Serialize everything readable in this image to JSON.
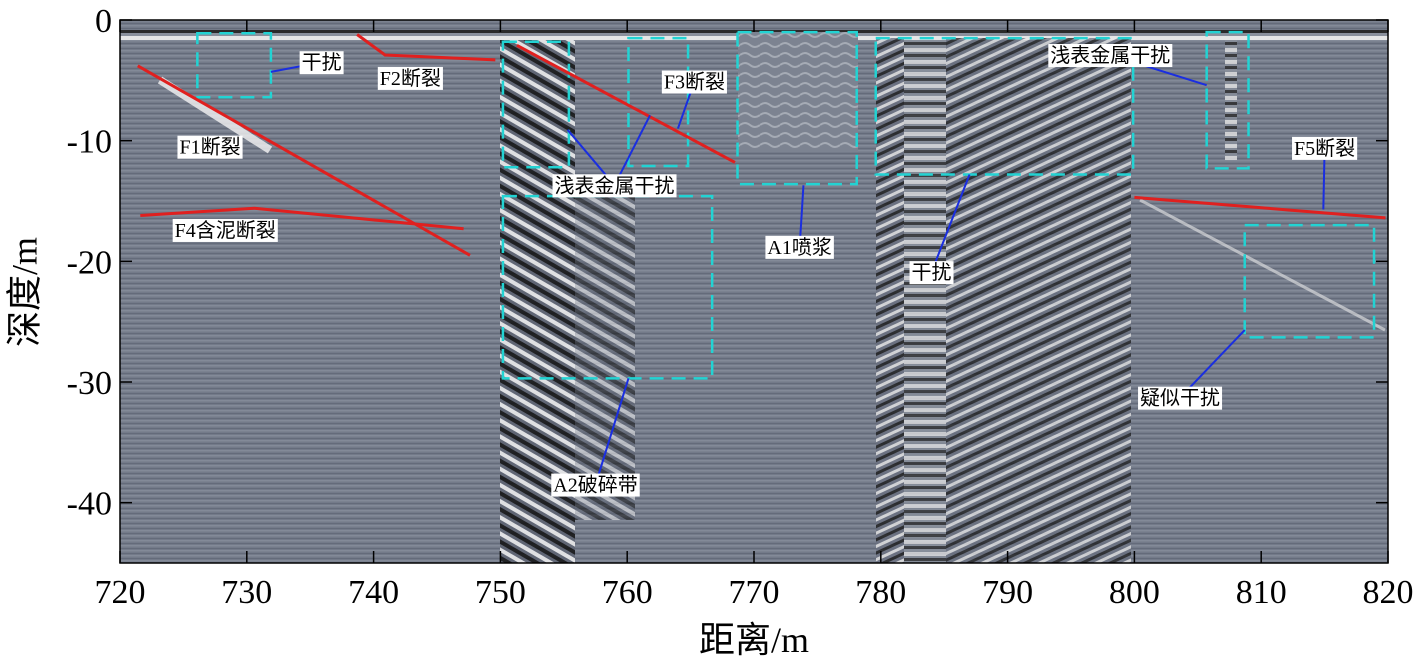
{
  "chart_data": {
    "type": "radargram",
    "xlabel": "距离/m",
    "ylabel": "深度/m",
    "xlim": [
      720,
      820
    ],
    "ylim": [
      -45,
      0
    ],
    "xticks": [
      720,
      730,
      740,
      750,
      760,
      770,
      780,
      790,
      800,
      810,
      820
    ],
    "yticks": [
      0,
      -10,
      -20,
      -30,
      -40
    ],
    "fault_color": "#e0201f",
    "box_color": "#22d3d3",
    "leader_color": "#1a2ee0",
    "faults": [
      {
        "x": [
          721.4,
          747.6
        ],
        "y": [
          -3.8,
          -19.5
        ]
      },
      {
        "x": [
          721.6,
          730.6,
          747.1
        ],
        "y": [
          -16.2,
          -15.6,
          -17.3
        ]
      },
      {
        "x": [
          738.7,
          740.9,
          749.6
        ],
        "y": [
          -1.2,
          -2.9,
          -3.3
        ]
      },
      {
        "x": [
          751.3,
          768.5
        ],
        "y": [
          -2.1,
          -11.8
        ]
      },
      {
        "x": [
          800.0,
          819.8
        ],
        "y": [
          -14.7,
          -16.4
        ]
      }
    ],
    "boxes": [
      {
        "x": [
          726.1,
          731.9
        ],
        "y": [
          -1.1,
          -6.4
        ]
      },
      {
        "x": [
          750.2,
          755.4
        ],
        "y": [
          -1.8,
          -12.2
        ]
      },
      {
        "x": [
          760.1,
          764.8
        ],
        "y": [
          -1.5,
          -12.1
        ]
      },
      {
        "x": [
          750.2,
          766.7
        ],
        "y": [
          -14.6,
          -29.7
        ]
      },
      {
        "x": [
          768.7,
          778.1
        ],
        "y": [
          -1.0,
          -13.6
        ]
      },
      {
        "x": [
          779.6,
          799.9
        ],
        "y": [
          -1.5,
          -12.8
        ]
      },
      {
        "x": [
          805.7,
          809.0
        ],
        "y": [
          -1.0,
          -12.3
        ]
      },
      {
        "x": [
          808.7,
          818.9
        ],
        "y": [
          -17.0,
          -26.3
        ]
      }
    ],
    "labels": [
      {
        "text": "干扰",
        "x": 735.9,
        "y": -3.5,
        "targets": [
          {
            "x": 731.9,
            "y": -4.3
          }
        ]
      },
      {
        "text": "F2断裂",
        "x": 742.9,
        "y": -4.8,
        "targets": []
      },
      {
        "text": "F3断裂",
        "x": 765.3,
        "y": -5.1,
        "targets": [
          {
            "x": 764.0,
            "y": -9.0
          }
        ]
      },
      {
        "text": "F1断裂",
        "x": 727.1,
        "y": -10.5,
        "targets": []
      },
      {
        "text": "浅表金属干扰",
        "x": 759.0,
        "y": -13.7,
        "targets": [
          {
            "x": 755.3,
            "y": -9.1
          },
          {
            "x": 761.8,
            "y": -7.9
          }
        ]
      },
      {
        "text": "F4含泥断裂",
        "x": 728.3,
        "y": -17.4,
        "targets": []
      },
      {
        "text": "A1喷浆",
        "x": 773.6,
        "y": -18.8,
        "targets": [
          {
            "x": 773.9,
            "y": -13.7
          }
        ]
      },
      {
        "text": "干扰",
        "x": 784.0,
        "y": -20.9,
        "targets": [
          {
            "x": 787.0,
            "y": -12.8
          }
        ]
      },
      {
        "text": "浅表金属干扰",
        "x": 798.1,
        "y": -2.9,
        "targets": [
          {
            "x": 805.7,
            "y": -5.4
          }
        ]
      },
      {
        "text": "F5断裂",
        "x": 815.0,
        "y": -10.6,
        "targets": [
          {
            "x": 814.9,
            "y": -15.7
          }
        ]
      },
      {
        "text": "疑似干扰",
        "x": 803.6,
        "y": -31.3,
        "targets": [
          {
            "x": 808.7,
            "y": -25.7
          }
        ]
      },
      {
        "text": "A2破碎带",
        "x": 757.5,
        "y": -38.5,
        "targets": [
          {
            "x": 760.1,
            "y": -29.7
          }
        ]
      }
    ]
  }
}
